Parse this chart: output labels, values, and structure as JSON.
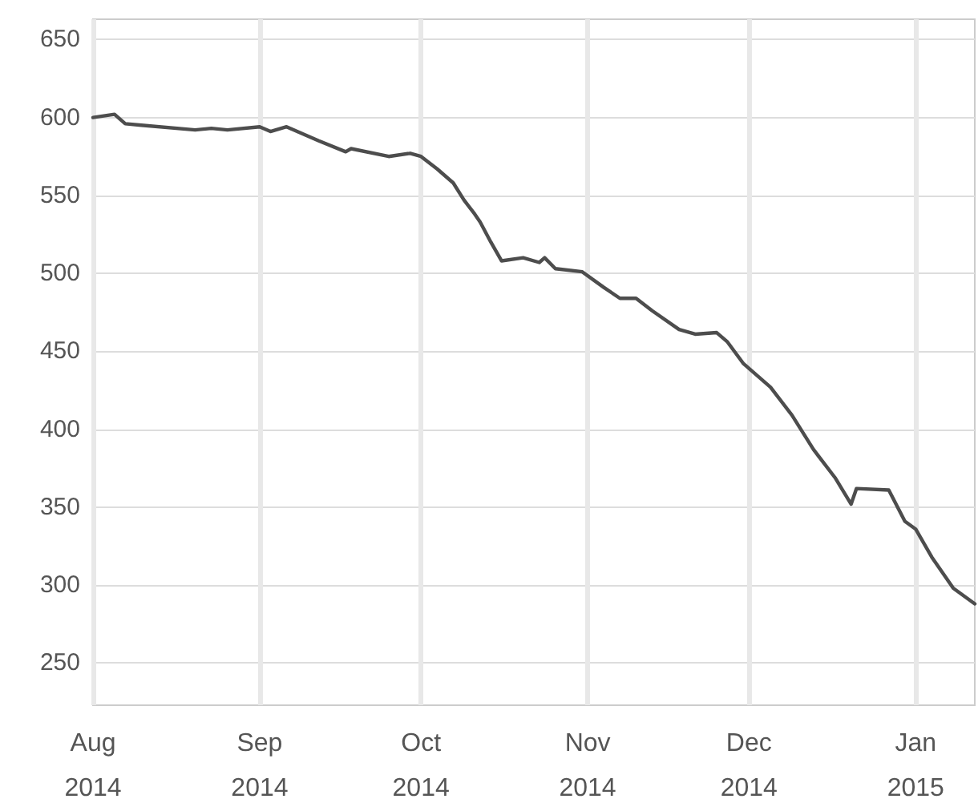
{
  "chart_data": {
    "type": "line",
    "color": "#4d4d4d",
    "marker": "none",
    "line_style": "solid",
    "grid": true,
    "x": [
      "2014-08-01",
      "2014-08-05",
      "2014-08-07",
      "2014-08-10",
      "2014-08-20",
      "2014-08-23",
      "2014-08-26",
      "2014-09-01",
      "2014-09-03",
      "2014-09-06",
      "2014-09-12",
      "2014-09-17",
      "2014-09-18",
      "2014-09-25",
      "2014-09-29",
      "2014-10-01",
      "2014-10-04",
      "2014-10-07",
      "2014-10-09",
      "2014-10-11",
      "2014-10-12",
      "2014-10-14",
      "2014-10-16",
      "2014-10-20",
      "2014-10-23",
      "2014-10-24",
      "2014-10-26",
      "2014-10-31",
      "2014-11-04",
      "2014-11-07",
      "2014-11-10",
      "2014-11-13",
      "2014-11-18",
      "2014-11-21",
      "2014-11-25",
      "2014-11-27",
      "2014-11-30",
      "2014-12-05",
      "2014-12-09",
      "2014-12-13",
      "2014-12-17",
      "2014-12-20",
      "2014-12-21",
      "2014-12-27",
      "2014-12-30",
      "2015-01-01",
      "2015-01-04",
      "2015-01-08",
      "2015-01-12"
    ],
    "values": [
      600,
      602,
      596,
      595,
      592,
      593,
      592,
      594,
      591,
      594,
      585,
      578,
      580,
      575,
      577,
      575,
      567,
      558,
      547,
      538,
      533,
      520,
      508,
      510,
      507,
      510,
      503,
      501,
      491,
      484,
      484,
      476,
      464,
      461,
      462,
      456,
      442,
      427,
      409,
      387,
      369,
      352,
      362,
      361,
      341,
      336,
      318,
      298,
      288
    ],
    "xlim": [
      "2014-08-01",
      "2015-01-12"
    ],
    "xticks": [
      {
        "value": "2014-08-01",
        "label": "Aug\n2014"
      },
      {
        "value": "2014-09-01",
        "label": "Sep\n2014"
      },
      {
        "value": "2014-10-01",
        "label": "Oct\n2014"
      },
      {
        "value": "2014-11-01",
        "label": "Nov\n2014"
      },
      {
        "value": "2014-12-01",
        "label": "Dec\n2014"
      },
      {
        "value": "2015-01-01",
        "label": "Jan\n2015"
      }
    ],
    "ylim": [
      223,
      663
    ],
    "yticks": [
      250,
      300,
      350,
      400,
      450,
      500,
      550,
      600,
      650
    ]
  }
}
